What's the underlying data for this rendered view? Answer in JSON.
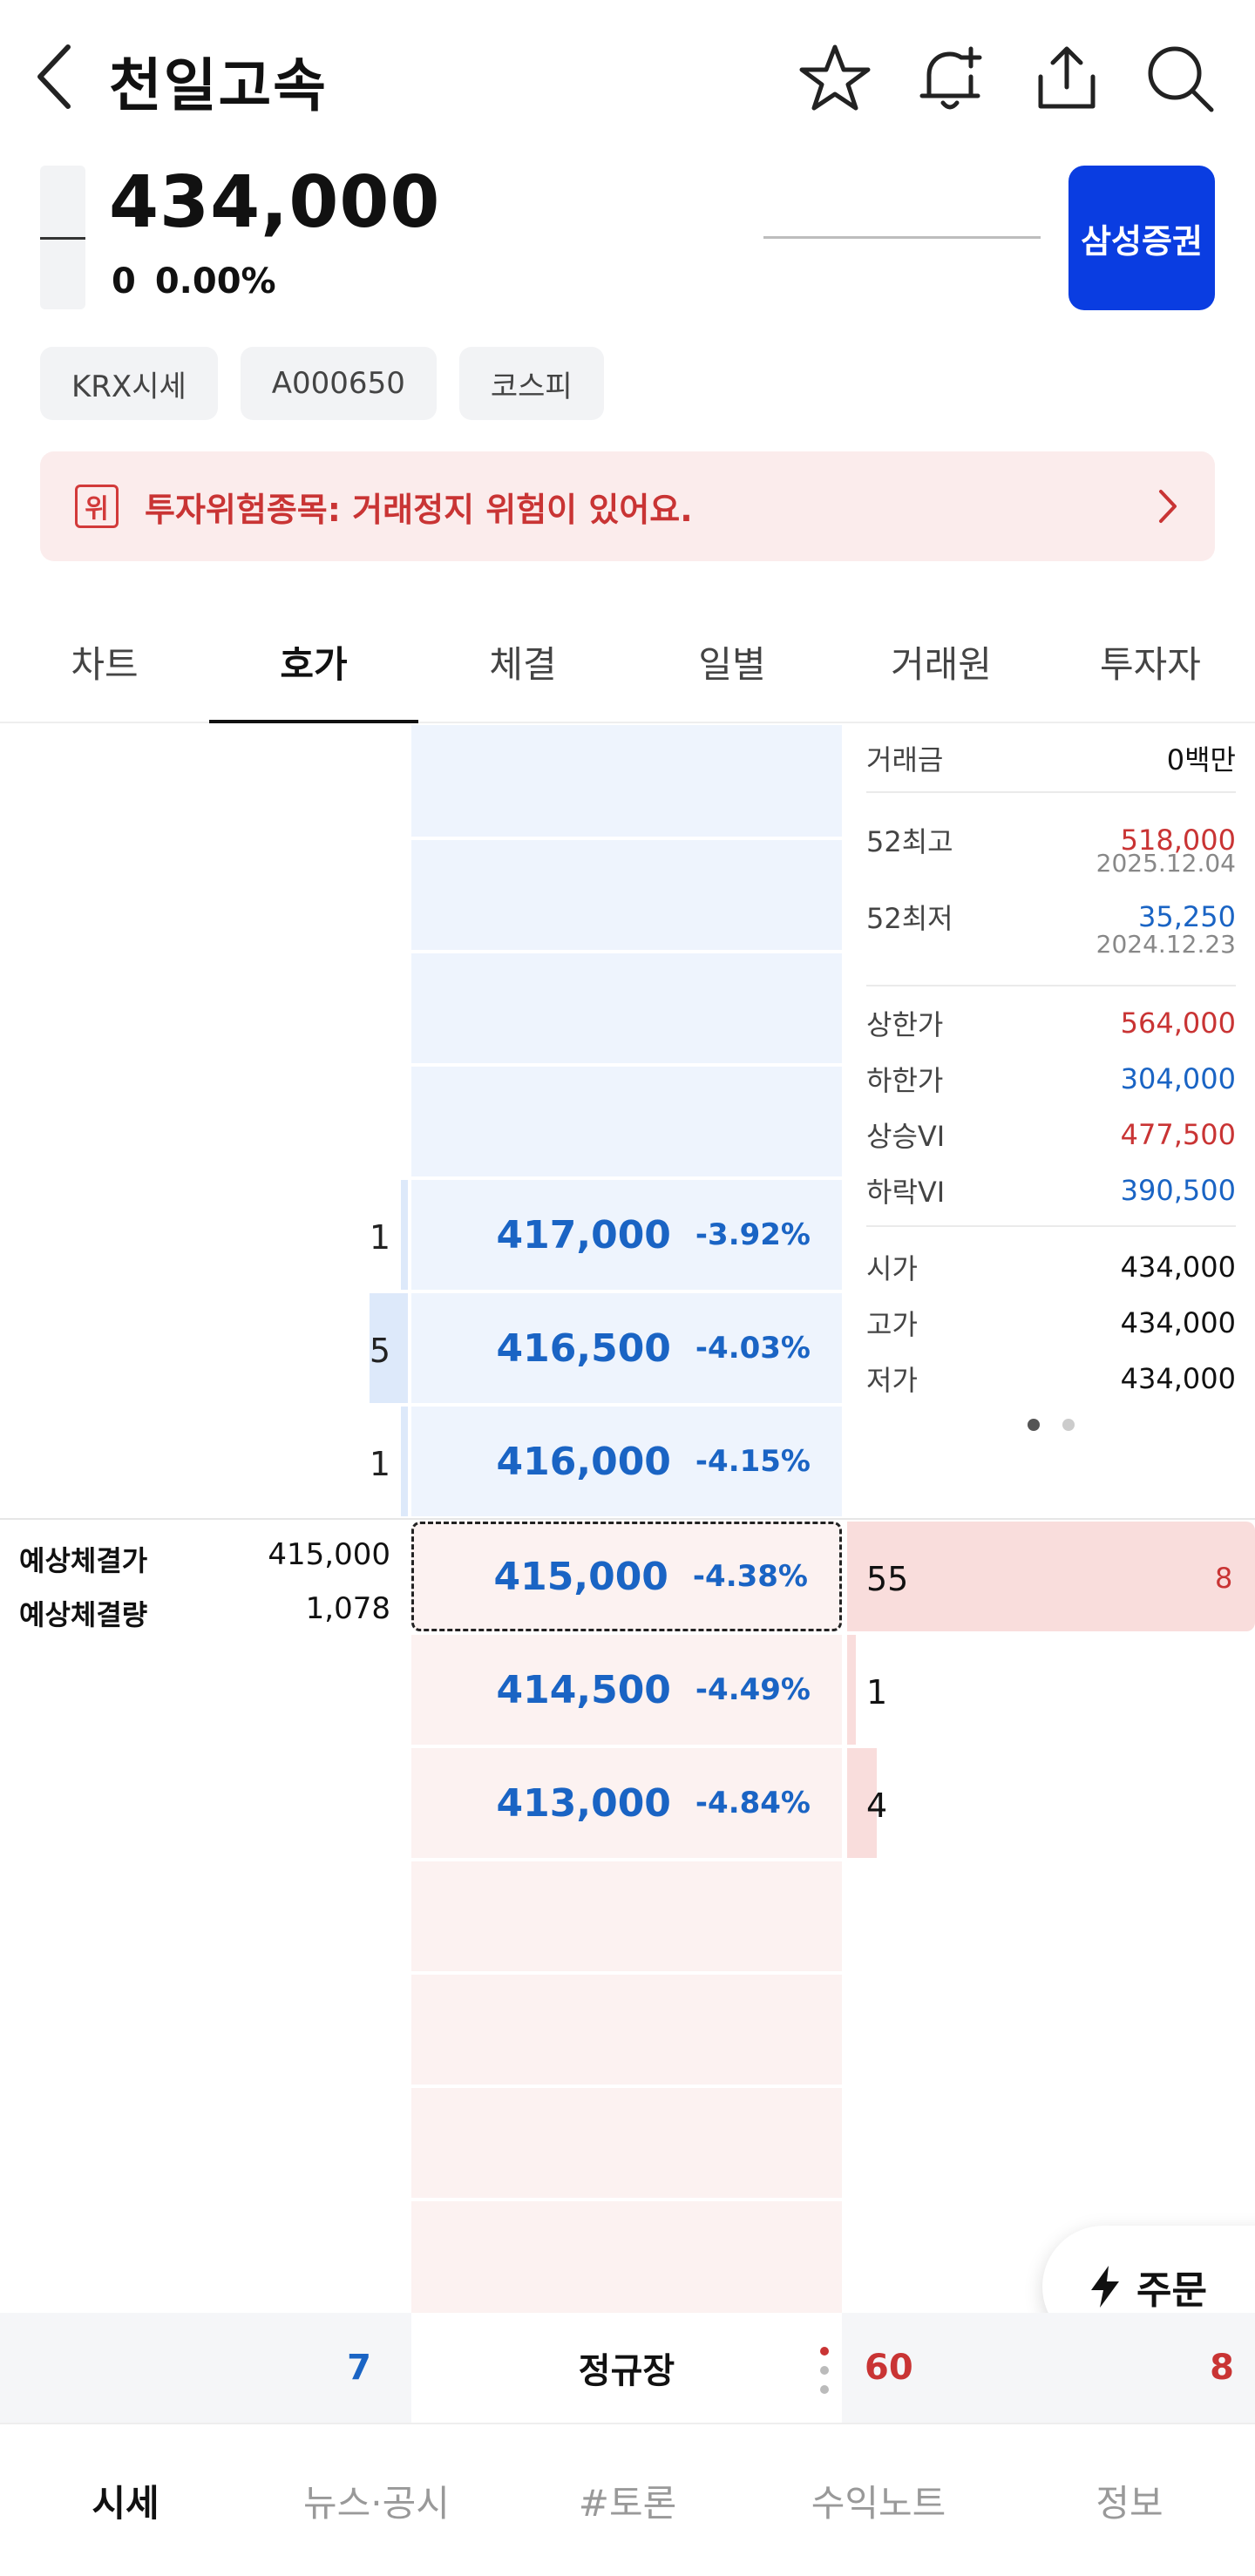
{
  "header": {
    "title": "천일고속",
    "icons": [
      "back-icon",
      "star-icon",
      "bell-plus-icon",
      "share-icon",
      "search-icon"
    ]
  },
  "price": {
    "current": "434,000",
    "change": "0",
    "change_pct": "0.00%",
    "broker": "삼성증권"
  },
  "tags": [
    "KRX시세",
    "A000650",
    "코스피"
  ],
  "warning": {
    "badge": "위",
    "text": "투자위험종목: 거래정지 위험이 있어요."
  },
  "tabs": [
    "차트",
    "호가",
    "체결",
    "일별",
    "거래원",
    "투자자"
  ],
  "active_tab": "호가",
  "asks": [
    {
      "price": "417,000",
      "pct": "-3.92%",
      "volume": "1"
    },
    {
      "price": "416,500",
      "pct": "-4.03%",
      "volume": "5"
    },
    {
      "price": "416,000",
      "pct": "-4.15%",
      "volume": "1"
    }
  ],
  "bids": [
    {
      "price": "415,000",
      "pct": "-4.38%",
      "volume": "55",
      "right": "8"
    },
    {
      "price": "414,500",
      "pct": "-4.49%",
      "volume": "1"
    },
    {
      "price": "413,000",
      "pct": "-4.84%",
      "volume": "4"
    }
  ],
  "expected": {
    "price_label": "예상체결가",
    "price_value": "415,000",
    "volume_label": "예상체결량",
    "volume_value": "1,078"
  },
  "info": {
    "trade_amount_label": "거래금",
    "trade_amount": "0백만",
    "high52_label": "52최고",
    "high52": "518,000",
    "high52_date": "2025.12.04",
    "low52_label": "52최저",
    "low52": "35,250",
    "low52_date": "2024.12.23",
    "upper_limit_label": "상한가",
    "upper_limit": "564,000",
    "lower_limit_label": "하한가",
    "lower_limit": "304,000",
    "up_vi_label": "상승VI",
    "up_vi": "477,500",
    "down_vi_label": "하락VI",
    "down_vi": "390,500",
    "open_label": "시가",
    "open": "434,000",
    "high_label": "고가",
    "high": "434,000",
    "low_label": "저가",
    "low": "434,000"
  },
  "summary": {
    "ask_total": "7",
    "session": "정규장",
    "bid_total": "60",
    "bid_right": "8"
  },
  "order_button": "주문",
  "bottom_nav": [
    "시세",
    "뉴스·공시",
    "#토론",
    "수익노트",
    "정보"
  ],
  "colors": {
    "rise": "#c93434",
    "fall": "#1a64c4",
    "broker": "#0a3de1"
  }
}
